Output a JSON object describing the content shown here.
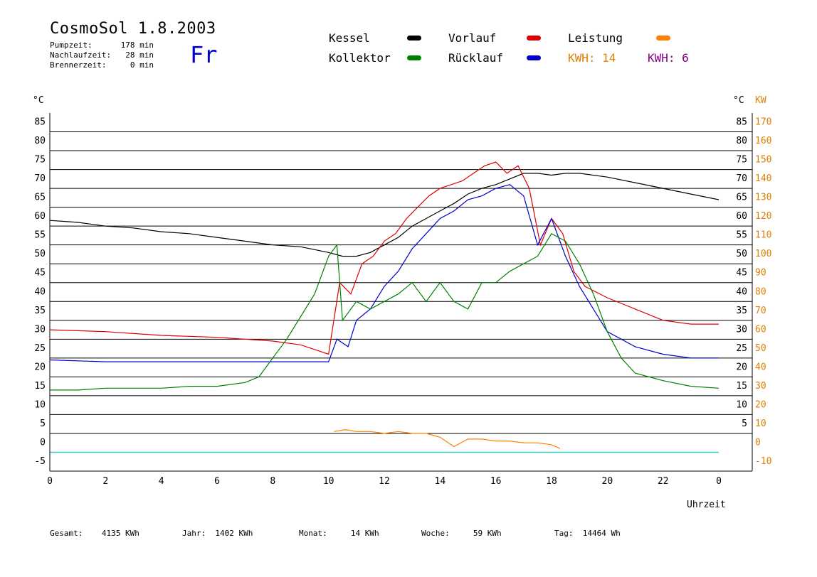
{
  "header": {
    "title": "CosmoSol 1.8.2003",
    "day": "Fr",
    "stats": [
      {
        "label": "Pumpzeit:",
        "value": "178 min"
      },
      {
        "label": "Nachlaufzeit:",
        "value": "28 min"
      },
      {
        "label": "Brennerzeit:",
        "value": "0 min"
      }
    ]
  },
  "legend": [
    {
      "label": "Kessel",
      "color": "#000000"
    },
    {
      "label": "Vorlauf",
      "color": "#dd0000"
    },
    {
      "label": "Leistung",
      "color": "#ff8000"
    },
    {
      "label": "Kollektor",
      "color": "#008000"
    },
    {
      "label": "Rücklauf",
      "color": "#0000cc"
    }
  ],
  "kwh": [
    {
      "text": "KWH: 14",
      "color": "#e08000"
    },
    {
      "text": "KWH: 6",
      "color": "#800080"
    }
  ],
  "footer": [
    {
      "label": "Gesamt:",
      "value": "4135 KWh"
    },
    {
      "label": "Jahr:",
      "value": "1402 KWh"
    },
    {
      "label": "Monat:",
      "value": "14 KWh"
    },
    {
      "label": "Woche:",
      "value": "59 KWh"
    },
    {
      "label": "Tag:",
      "value": "14464 Wh"
    }
  ],
  "chart_data": {
    "type": "line",
    "xlabel": "Uhrzeit",
    "ylabel_left": "°C",
    "ylabel_right_1": "°C",
    "ylabel_right_2": "KW",
    "xlim": [
      0,
      24
    ],
    "ylim": [
      -5,
      90
    ],
    "x_ticks": [
      "0",
      "2",
      "4",
      "6",
      "8",
      "10",
      "12",
      "14",
      "16",
      "18",
      "20",
      "22",
      "0"
    ],
    "y_ticks_left": [
      "-5",
      "0",
      "5",
      "10",
      "15",
      "20",
      "25",
      "30",
      "35",
      "40",
      "45",
      "50",
      "55",
      "60",
      "65",
      "70",
      "75",
      "80",
      "85"
    ],
    "y_ticks_right_c": [
      "5",
      "10",
      "15",
      "20",
      "25",
      "30",
      "35",
      "40",
      "45",
      "50",
      "55",
      "60",
      "65",
      "70",
      "75",
      "80",
      "85"
    ],
    "y_ticks_right_kw": [
      "-10",
      "0",
      "10",
      "20",
      "30",
      "40",
      "50",
      "60",
      "70",
      "80",
      "90",
      "100",
      "110",
      "120",
      "130",
      "140",
      "150",
      "160",
      "170"
    ],
    "grid": true,
    "series": [
      {
        "name": "Kessel",
        "color": "#000000",
        "x": [
          0,
          1,
          2,
          3,
          4,
          5,
          6,
          7,
          8,
          9,
          10,
          10.5,
          11,
          11.5,
          12,
          12.5,
          13,
          13.5,
          14,
          14.5,
          15,
          15.5,
          16,
          16.5,
          17,
          17.5,
          18,
          18.5,
          19,
          20,
          21,
          22,
          23,
          24
        ],
        "y": [
          61.5,
          61,
          60,
          59.5,
          58.5,
          58,
          57,
          56,
          55,
          54.5,
          53,
          52,
          52,
          53,
          55,
          57,
          60,
          62,
          64,
          66,
          68.5,
          70,
          71,
          72.5,
          74,
          74,
          73.5,
          74,
          74,
          73,
          71.5,
          70,
          68.5,
          67
        ]
      },
      {
        "name": "Vorlauf",
        "color": "#dd0000",
        "x": [
          0,
          2,
          4,
          6,
          8,
          9,
          10,
          10.4,
          10.8,
          11.2,
          11.6,
          12,
          12.4,
          12.8,
          13.2,
          13.6,
          14,
          14.4,
          14.8,
          15.2,
          15.6,
          16,
          16.4,
          16.8,
          17.2,
          17.6,
          18,
          18.4,
          18.8,
          19.2,
          20,
          21,
          22,
          23,
          24
        ],
        "y": [
          32.5,
          32,
          31,
          30.5,
          29.5,
          28.5,
          26,
          45,
          42,
          50,
          52,
          56,
          58,
          62,
          65,
          68,
          70,
          71,
          72,
          74,
          76,
          77,
          74,
          76,
          70,
          55,
          62,
          58,
          48,
          44,
          41,
          38,
          35,
          34,
          34
        ]
      },
      {
        "name": "Rücklauf",
        "color": "#0000cc",
        "x": [
          0,
          2,
          4,
          6,
          8,
          10,
          10.3,
          10.7,
          11,
          11.5,
          12,
          12.5,
          13,
          13.5,
          14,
          14.5,
          15,
          15.5,
          16,
          16.5,
          17,
          17.5,
          18,
          18.5,
          19,
          19.5,
          20,
          21,
          22,
          23,
          24
        ],
        "y": [
          24.5,
          24,
          24,
          24,
          24,
          24,
          30,
          28,
          35,
          38,
          44,
          48,
          54,
          58,
          62,
          64,
          67,
          68,
          70,
          71,
          68,
          55,
          62,
          52,
          44,
          38,
          32,
          28,
          26,
          25,
          25
        ]
      },
      {
        "name": "Kollektor",
        "color": "#008000",
        "x": [
          0,
          1,
          2,
          3,
          4,
          5,
          6,
          7,
          7.5,
          8,
          8.5,
          9,
          9.5,
          10,
          10.3,
          10.5,
          11,
          11.5,
          12,
          12.5,
          13,
          13.5,
          14,
          14.5,
          15,
          15.5,
          16,
          16.5,
          17,
          17.5,
          18,
          18.5,
          19,
          19.5,
          20,
          20.5,
          21,
          22,
          23,
          24
        ],
        "y": [
          16.5,
          16.5,
          17,
          17,
          17,
          17.5,
          17.5,
          18.5,
          20,
          25,
          30,
          36,
          42,
          52,
          55,
          35,
          40,
          38,
          40,
          42,
          45,
          40,
          45,
          40,
          38,
          45,
          45,
          48,
          50,
          52,
          58,
          56,
          50,
          42,
          32,
          25,
          21,
          19,
          17.5,
          17
        ]
      },
      {
        "name": "Leistung",
        "color": "#ff8000",
        "x": [
          10.2,
          10.6,
          11,
          11.5,
          12,
          12.5,
          13,
          13.5,
          14,
          14.5,
          15,
          15.5,
          16,
          16.5,
          17,
          17.5,
          18,
          18.3
        ],
        "y": [
          5.5,
          6,
          5.5,
          5.5,
          5,
          5.5,
          5,
          5,
          4,
          1.5,
          3.5,
          3.5,
          3,
          3,
          2.5,
          2.5,
          2,
          1
        ]
      }
    ]
  }
}
